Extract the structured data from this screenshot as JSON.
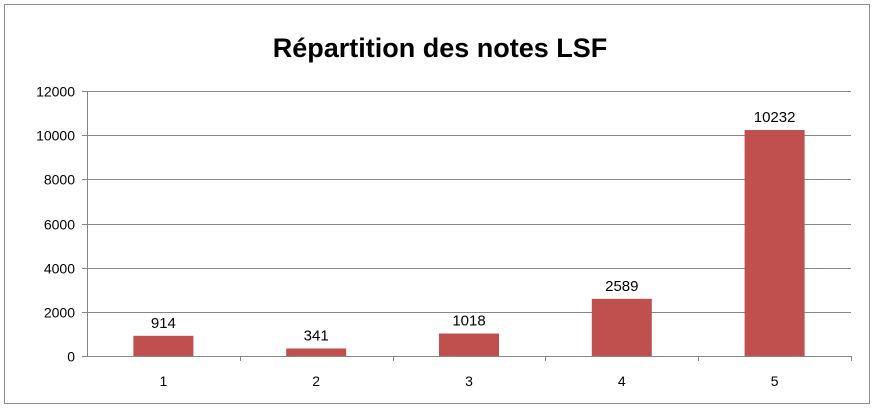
{
  "chart_data": {
    "type": "bar",
    "title": "Répartition des notes LSF",
    "xlabel": "",
    "ylabel": "",
    "categories": [
      "1",
      "2",
      "3",
      "4",
      "5"
    ],
    "values": [
      914,
      341,
      1018,
      2589,
      10232
    ],
    "data_labels": [
      "914",
      "341",
      "1018",
      "2589",
      "10232"
    ],
    "ylim": [
      0,
      12000
    ],
    "yticks": [
      "0",
      "2000",
      "4000",
      "6000",
      "8000",
      "10000",
      "12000"
    ],
    "ytick_values": [
      0,
      2000,
      4000,
      6000,
      8000,
      10000,
      12000
    ],
    "grid": true,
    "legend": "none",
    "bar_color": "#c0504d",
    "grid_color": "#868686"
  }
}
